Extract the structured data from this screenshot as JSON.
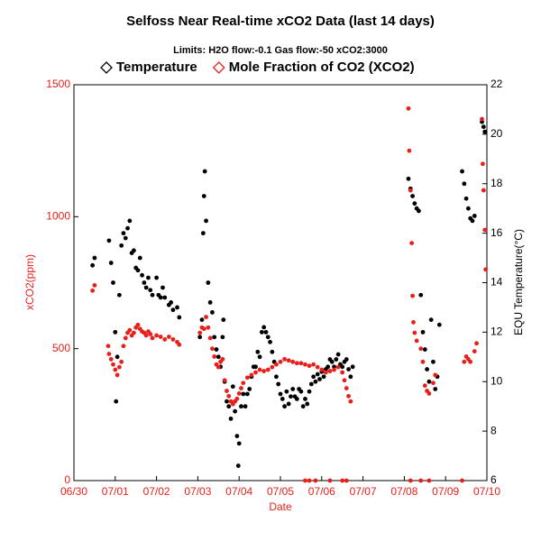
{
  "chart_data": {
    "type": "scatter",
    "title": "Selfoss Near Real-time xCO2 Data (last 14 days)",
    "subtitle": "Limits:    H2O flow:-0.1     Gas flow:-50     xCO2:3000",
    "xlabel": "Date",
    "ylabel": "xCO2(ppm)",
    "y2label": "EQU Temperature(°C)",
    "xlim": [
      0,
      10
    ],
    "xticks": [
      {
        "value": 0,
        "label": "06/30"
      },
      {
        "value": 1,
        "label": "07/01"
      },
      {
        "value": 2,
        "label": "07/02"
      },
      {
        "value": 3,
        "label": "07/03"
      },
      {
        "value": 4,
        "label": "07/04"
      },
      {
        "value": 5,
        "label": "07/05"
      },
      {
        "value": 6,
        "label": "07/06"
      },
      {
        "value": 7,
        "label": "07/07"
      },
      {
        "value": 8,
        "label": "07/08"
      },
      {
        "value": 9,
        "label": "07/09"
      },
      {
        "value": 10,
        "label": "07/10"
      }
    ],
    "ylim": [
      0,
      1500
    ],
    "yticks": [
      0,
      500,
      1000,
      1500
    ],
    "y2lim": [
      6,
      22
    ],
    "y2ticks": [
      6,
      8,
      10,
      12,
      14,
      16,
      18,
      20,
      22
    ],
    "y_color": "#e8201c",
    "y2_color": "#000000",
    "series": [
      {
        "name": "Temperature",
        "color": "#000000",
        "axis": "y2",
        "x": [
          0.45,
          0.5,
          0.85,
          0.9,
          0.95,
          1.0,
          1.02,
          1.05,
          1.1,
          1.15,
          1.2,
          1.25,
          1.3,
          1.35,
          1.4,
          1.45,
          1.5,
          1.55,
          1.6,
          1.65,
          1.7,
          1.75,
          1.8,
          1.85,
          1.9,
          2.0,
          2.05,
          2.1,
          2.15,
          2.2,
          2.3,
          2.35,
          2.4,
          2.5,
          2.55,
          3.05,
          3.1,
          3.13,
          3.15,
          3.17,
          3.2,
          3.25,
          3.3,
          3.35,
          3.4,
          3.45,
          3.5,
          3.55,
          3.6,
          3.62,
          3.65,
          3.7,
          3.75,
          3.8,
          3.85,
          3.9,
          3.95,
          3.98,
          4.0,
          4.05,
          4.1,
          4.15,
          4.2,
          4.25,
          4.3,
          4.35,
          4.4,
          4.45,
          4.5,
          4.55,
          4.6,
          4.65,
          4.7,
          4.75,
          4.8,
          4.85,
          4.9,
          4.95,
          5.0,
          5.05,
          5.1,
          5.15,
          5.2,
          5.25,
          5.3,
          5.35,
          5.4,
          5.45,
          5.5,
          5.55,
          5.6,
          5.65,
          5.7,
          5.75,
          5.8,
          5.85,
          5.9,
          5.95,
          6.0,
          6.05,
          6.1,
          6.15,
          6.2,
          6.25,
          6.3,
          6.35,
          6.4,
          6.45,
          6.5,
          6.55,
          6.6,
          6.65,
          6.7,
          6.75,
          8.1,
          8.15,
          8.2,
          8.25,
          8.3,
          8.35,
          8.4,
          8.45,
          8.5,
          8.55,
          8.6,
          8.65,
          8.7,
          8.75,
          8.8,
          8.85,
          9.4,
          9.45,
          9.5,
          9.55,
          9.6,
          9.65,
          9.7,
          9.88,
          9.92,
          9.95
        ],
        "values": [
          14.7,
          15.0,
          15.7,
          14.8,
          14.0,
          12.0,
          9.2,
          11,
          13.5,
          15.5,
          16.0,
          15.8,
          16.2,
          16.5,
          15.2,
          15.3,
          14.6,
          14.5,
          15.0,
          14.3,
          14.0,
          13.8,
          14.2,
          13.7,
          13.5,
          14.2,
          13.5,
          13.4,
          13.8,
          13.4,
          13.1,
          13.2,
          12.9,
          13.0,
          12.6,
          11.8,
          12.5,
          16.0,
          17.5,
          18.5,
          16.5,
          14.0,
          13.2,
          12.8,
          11.8,
          11.3,
          11.0,
          10.6,
          11.8,
          12.5,
          10.0,
          9.2,
          9.0,
          8.5,
          9.8,
          8.8,
          7.8,
          6.6,
          7.5,
          9.0,
          9.5,
          9.0,
          9.5,
          9.7,
          10.2,
          10.6,
          10.6,
          11.2,
          11.0,
          12.0,
          12.2,
          12.0,
          11.8,
          11.6,
          11.2,
          10.8,
          10.2,
          9.9,
          9.5,
          9.3,
          9.0,
          9.6,
          9.1,
          9.4,
          9.7,
          9.4,
          9.3,
          9.7,
          9.6,
          9.0,
          9.3,
          9.1,
          9.6,
          9.9,
          10.2,
          10.0,
          10.3,
          10.1,
          10.4,
          10.2,
          10.5,
          10.6,
          10.9,
          10.8,
          10.6,
          10.9,
          11.1,
          10.7,
          10.6,
          10.8,
          10.9,
          10.5,
          10.2,
          10.6,
          18.2,
          17.8,
          17.5,
          17.2,
          17.0,
          16.9,
          13.5,
          12.0,
          11.3,
          10.5,
          10.0,
          12.5,
          10.8,
          9.7,
          10.2,
          12.3,
          18.5,
          18.0,
          17.4,
          17.0,
          16.6,
          16.5,
          16.7,
          20.5,
          20.3,
          20.1
        ]
      },
      {
        "name": "Mole Fraction of CO2 (XCO2)",
        "color": "#e8201c",
        "axis": "y",
        "x": [
          0.45,
          0.5,
          0.83,
          0.85,
          0.9,
          0.95,
          1.0,
          1.05,
          1.1,
          1.15,
          1.2,
          1.25,
          1.3,
          1.35,
          1.4,
          1.45,
          1.5,
          1.55,
          1.6,
          1.65,
          1.7,
          1.75,
          1.8,
          1.85,
          1.9,
          2.0,
          2.1,
          2.2,
          2.3,
          2.4,
          2.5,
          2.55,
          3.05,
          3.1,
          3.15,
          3.2,
          3.25,
          3.3,
          3.35,
          3.4,
          3.45,
          3.5,
          3.55,
          3.6,
          3.65,
          3.7,
          3.75,
          3.8,
          3.85,
          3.9,
          3.95,
          4.0,
          4.05,
          4.1,
          4.2,
          4.3,
          4.4,
          4.5,
          4.6,
          4.7,
          4.8,
          4.9,
          5.0,
          5.1,
          5.2,
          5.3,
          5.4,
          5.5,
          5.6,
          5.7,
          5.8,
          5.9,
          6.0,
          6.1,
          6.2,
          6.3,
          6.4,
          6.5,
          6.55,
          6.6,
          6.65,
          6.7,
          5.6,
          5.7,
          5.85,
          6.2,
          6.5,
          6.6,
          8.1,
          8.12,
          8.15,
          8.18,
          8.2,
          8.22,
          8.25,
          8.3,
          8.4,
          8.45,
          8.5,
          8.55,
          8.6,
          8.7,
          8.75,
          8.15,
          8.4,
          8.6,
          9.4,
          9.45,
          9.5,
          9.55,
          9.6,
          9.7,
          9.75,
          9.88,
          9.9,
          9.92,
          9.95,
          9.97
        ],
        "values": [
          720,
          740,
          510,
          480,
          460,
          440,
          420,
          400,
          430,
          450,
          510,
          540,
          560,
          570,
          550,
          560,
          580,
          590,
          575,
          565,
          560,
          550,
          565,
          555,
          540,
          550,
          545,
          535,
          545,
          535,
          525,
          515,
          560,
          580,
          575,
          620,
          580,
          540,
          500,
          470,
          440,
          430,
          450,
          460,
          380,
          340,
          320,
          300,
          290,
          300,
          310,
          330,
          350,
          370,
          390,
          400,
          410,
          420,
          415,
          420,
          430,
          440,
          450,
          460,
          455,
          450,
          445,
          445,
          440,
          435,
          440,
          430,
          420,
          410,
          415,
          420,
          430,
          410,
          380,
          350,
          320,
          300,
          0,
          0,
          0,
          0,
          0,
          0,
          1410,
          1250,
          1100,
          900,
          700,
          600,
          560,
          530,
          500,
          450,
          360,
          340,
          330,
          370,
          400,
          0,
          0,
          0,
          0,
          450,
          470,
          460,
          450,
          490,
          520,
          1370,
          1200,
          1100,
          950,
          800
        ]
      }
    ]
  }
}
